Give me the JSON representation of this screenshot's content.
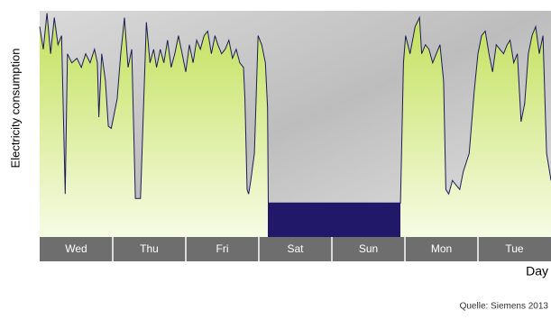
{
  "chart_data": {
    "type": "area",
    "y_label": "Electricity consumption",
    "x_label": "Day",
    "source": "Quelle: Siemens 2013",
    "categories": [
      "Wed",
      "Thu",
      "Fri",
      "Sat",
      "Sun",
      "Mon",
      "Tue"
    ],
    "xlim": [
      0,
      7
    ],
    "ylim": [
      0,
      100
    ],
    "series": [
      {
        "color": "#1c1a5a",
        "x": [
          0,
          0.05,
          0.1,
          0.15,
          0.2,
          0.25,
          0.3,
          0.35,
          0.38,
          0.44,
          0.51,
          0.57,
          0.63,
          0.69,
          0.75,
          0.79,
          0.81,
          0.85,
          0.9,
          0.94,
          0.98,
          1.06,
          1.11,
          1.16,
          1.21,
          1.26,
          1.31,
          1.38,
          1.46,
          1.51,
          1.56,
          1.6,
          1.65,
          1.7,
          1.75,
          1.8,
          1.85,
          1.9,
          1.95,
          2,
          2.05,
          2.1,
          2.15,
          2.2,
          2.25,
          2.3,
          2.35,
          2.4,
          2.44,
          2.49,
          2.54,
          2.59,
          2.64,
          2.69,
          2.74,
          2.79,
          2.81,
          2.84,
          2.86,
          2.89,
          2.94,
          2.99,
          3.04,
          3.09,
          3.12,
          3.13,
          4.94,
          4.98,
          5.01,
          5.07,
          5.14,
          5.2,
          5.23,
          5.28,
          5.33,
          5.38,
          5.43,
          5.48,
          5.53,
          5.56,
          5.6,
          5.65,
          5.7,
          5.75,
          5.8,
          5.88,
          5.95,
          6,
          6.05,
          6.1,
          6.15,
          6.2,
          6.25,
          6.3,
          6.35,
          6.4,
          6.44,
          6.49,
          6.54,
          6.59,
          6.64,
          6.69,
          6.74,
          6.79,
          6.84,
          6.89,
          6.94,
          6.98,
          7
        ],
        "values": [
          93,
          83,
          99,
          81,
          97,
          85,
          89,
          19,
          81,
          77,
          79,
          75,
          81,
          77,
          83,
          77,
          53,
          81,
          69,
          49,
          48,
          61,
          81,
          97,
          75,
          83,
          17,
          17,
          95,
          77,
          83,
          75,
          83,
          77,
          87,
          75,
          81,
          89,
          81,
          73,
          85,
          77,
          87,
          83,
          89,
          91,
          81,
          89,
          85,
          81,
          83,
          87,
          79,
          83,
          77,
          75,
          61,
          21,
          19,
          25,
          37,
          89,
          85,
          77,
          57,
          15,
          15,
          77,
          89,
          81,
          93,
          97,
          81,
          85,
          83,
          77,
          81,
          85,
          69,
          21,
          19,
          25,
          23,
          21,
          29,
          37,
          65,
          81,
          89,
          91,
          81,
          73,
          85,
          83,
          81,
          85,
          87,
          77,
          81,
          51,
          59,
          81,
          89,
          93,
          81,
          89,
          37,
          29,
          25
        ]
      }
    ]
  }
}
